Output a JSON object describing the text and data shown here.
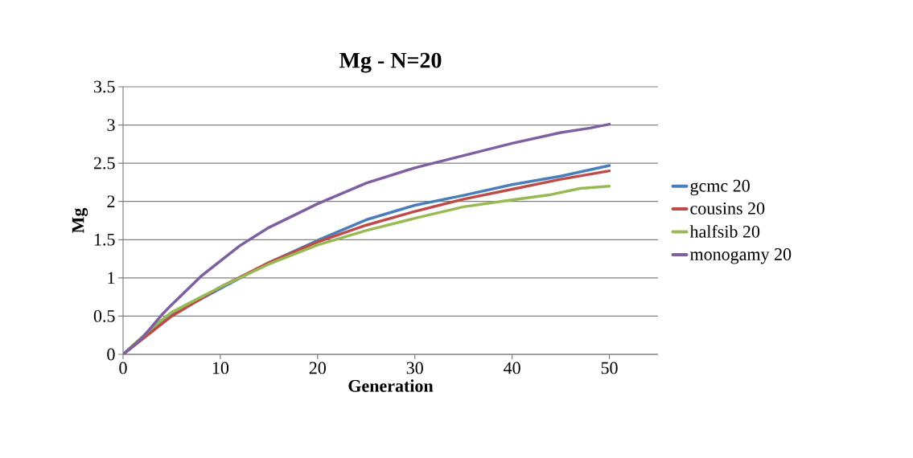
{
  "chart_data": {
    "type": "line",
    "title": "Mg - N=20",
    "xlabel": "Generation",
    "ylabel": "Mg",
    "xlim": [
      0,
      55
    ],
    "xticks": [
      0,
      10,
      20,
      30,
      40,
      50
    ],
    "ylim": [
      0,
      3.5
    ],
    "yticks": [
      0,
      0.5,
      1,
      1.5,
      2,
      2.5,
      3,
      3.5
    ],
    "grid": "y",
    "legend": "right",
    "marker": "none",
    "line_style": "solid",
    "series": [
      {
        "name": "gcmc 20",
        "color": "#4a7ebb",
        "x": [
          0,
          5,
          10,
          15,
          20,
          25,
          30,
          35,
          40,
          45,
          50
        ],
        "values": [
          0,
          0.52,
          null,
          1.2,
          1.49,
          1.76,
          1.95,
          2.08,
          2.22,
          2.33,
          2.47
        ]
      },
      {
        "name": "cousins 20",
        "color": "#be4b48",
        "x": [
          0,
          5,
          10,
          15,
          20,
          25,
          30,
          35,
          40,
          45,
          50
        ],
        "values": [
          0,
          0.5,
          0.88,
          1.2,
          1.47,
          1.69,
          1.87,
          2.03,
          2.16,
          2.29,
          2.4
        ]
      },
      {
        "name": "halfsib 20",
        "color": "#98b954",
        "x": [
          0,
          3,
          5,
          10,
          15,
          20,
          25,
          30,
          35,
          40,
          44,
          47,
          50
        ],
        "values": [
          0,
          0.35,
          0.55,
          0.88,
          1.18,
          1.43,
          1.62,
          1.78,
          1.93,
          2.02,
          2.09,
          2.17,
          2.2
        ]
      },
      {
        "name": "monogamy 20",
        "color": "#7d60a0",
        "x": [
          0,
          2,
          4,
          5,
          8,
          10,
          12,
          15,
          20,
          25,
          30,
          35,
          40,
          45,
          48,
          50
        ],
        "values": [
          0,
          0.22,
          0.52,
          0.65,
          1.02,
          1.22,
          1.42,
          1.66,
          1.97,
          2.24,
          2.44,
          2.6,
          2.76,
          2.9,
          2.96,
          3.01
        ]
      }
    ]
  }
}
